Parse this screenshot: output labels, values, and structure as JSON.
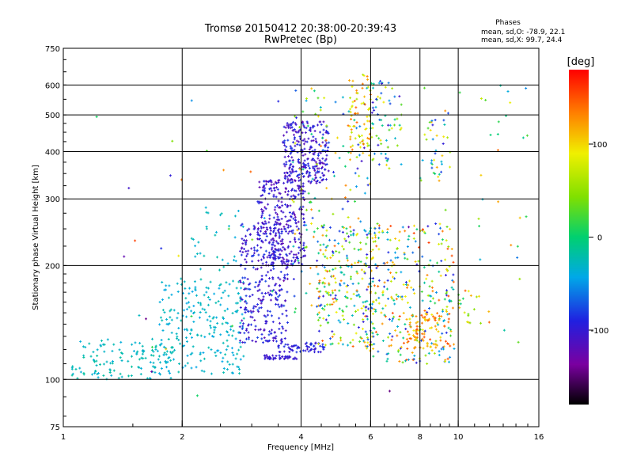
{
  "chart_data": {
    "type": "scatter",
    "title": "Tromsø 20150412 20:38:00-20:39:43",
    "subtitle": "RwPretec (Bp)",
    "xlabel": "Frequency [MHz]",
    "ylabel": "Stationary phase Virtual Height [km]",
    "x_scale": "log",
    "y_scale": "log",
    "xlim": [
      1,
      16
    ],
    "ylim": [
      75,
      750
    ],
    "x_ticks": [
      "1",
      "2",
      "4",
      "6",
      "8",
      "10",
      "16"
    ],
    "y_ticks": [
      "75",
      "100",
      "200",
      "300",
      "400",
      "500",
      "600",
      "750"
    ],
    "grid": true,
    "stats": {
      "heading": "Phases",
      "line_o": "mean, sd,O: -78.9, 22.1",
      "line_x": "mean, sd,X:  99.7, 24.4"
    },
    "colorbar": {
      "label": "[deg]",
      "ticks": [
        "100",
        "0",
        "-100"
      ],
      "range": [
        -180,
        180
      ]
    },
    "clusters": [
      {
        "fmin": 1.05,
        "fmax": 1.9,
        "hmin": 100,
        "hmax": 128,
        "n": 130,
        "pmin": -40,
        "pmax": -15
      },
      {
        "fmin": 1.75,
        "fmax": 2.9,
        "hmin": 103,
        "hmax": 185,
        "n": 230,
        "pmin": -45,
        "pmax": -20
      },
      {
        "fmin": 2.1,
        "fmax": 2.9,
        "hmin": 170,
        "hmax": 290,
        "n": 35,
        "pmin": -40,
        "pmax": -20
      },
      {
        "fmin": 2.8,
        "fmax": 3.7,
        "hmin": 125,
        "hmax": 260,
        "n": 320,
        "pmin": -120,
        "pmax": -75
      },
      {
        "fmin": 3.1,
        "fmax": 4.1,
        "hmin": 200,
        "hmax": 340,
        "n": 280,
        "pmin": -125,
        "pmax": -85
      },
      {
        "fmin": 3.6,
        "fmax": 4.7,
        "hmin": 330,
        "hmax": 480,
        "n": 260,
        "pmin": -125,
        "pmax": -80
      },
      {
        "fmin": 3.2,
        "fmax": 3.9,
        "hmin": 113,
        "hmax": 116,
        "n": 40,
        "pmin": -110,
        "pmax": -90
      },
      {
        "fmin": 3.5,
        "fmax": 4.6,
        "hmin": 118,
        "hmax": 125,
        "n": 60,
        "pmin": -110,
        "pmax": -80
      },
      {
        "fmin": 3.8,
        "fmax": 6.0,
        "hmin": 150,
        "hmax": 600,
        "n": 160,
        "pmin": -110,
        "pmax": 140
      },
      {
        "fmin": 4.4,
        "fmax": 6.2,
        "hmin": 120,
        "hmax": 260,
        "n": 220,
        "pmin": -110,
        "pmax": 150
      },
      {
        "fmin": 5.3,
        "fmax": 6.0,
        "hmin": 380,
        "hmax": 640,
        "n": 70,
        "pmin": 60,
        "pmax": 150
      },
      {
        "fmin": 6.0,
        "fmax": 7.2,
        "hmin": 360,
        "hmax": 620,
        "n": 70,
        "pmin": -110,
        "pmax": 100
      },
      {
        "fmin": 5.8,
        "fmax": 9.8,
        "hmin": 110,
        "hmax": 260,
        "n": 320,
        "pmin": -100,
        "pmax": 160
      },
      {
        "fmin": 7.4,
        "fmax": 9.6,
        "hmin": 120,
        "hmax": 150,
        "n": 90,
        "pmin": 90,
        "pmax": 160
      },
      {
        "fmin": 8.0,
        "fmax": 9.6,
        "hmin": 330,
        "hmax": 520,
        "n": 40,
        "pmin": -110,
        "pmax": 130
      },
      {
        "fmin": 10.0,
        "fmax": 11.5,
        "hmin": 140,
        "hmax": 175,
        "n": 18,
        "pmin": -40,
        "pmax": 150
      },
      {
        "fmin": 11.0,
        "fmax": 15.0,
        "hmin": 130,
        "hmax": 620,
        "n": 25,
        "pmin": -60,
        "pmax": 150
      },
      {
        "fmin": 1.2,
        "fmax": 15.0,
        "hmin": 90,
        "hmax": 650,
        "n": 45,
        "pmin": -150,
        "pmax": 160
      }
    ]
  }
}
